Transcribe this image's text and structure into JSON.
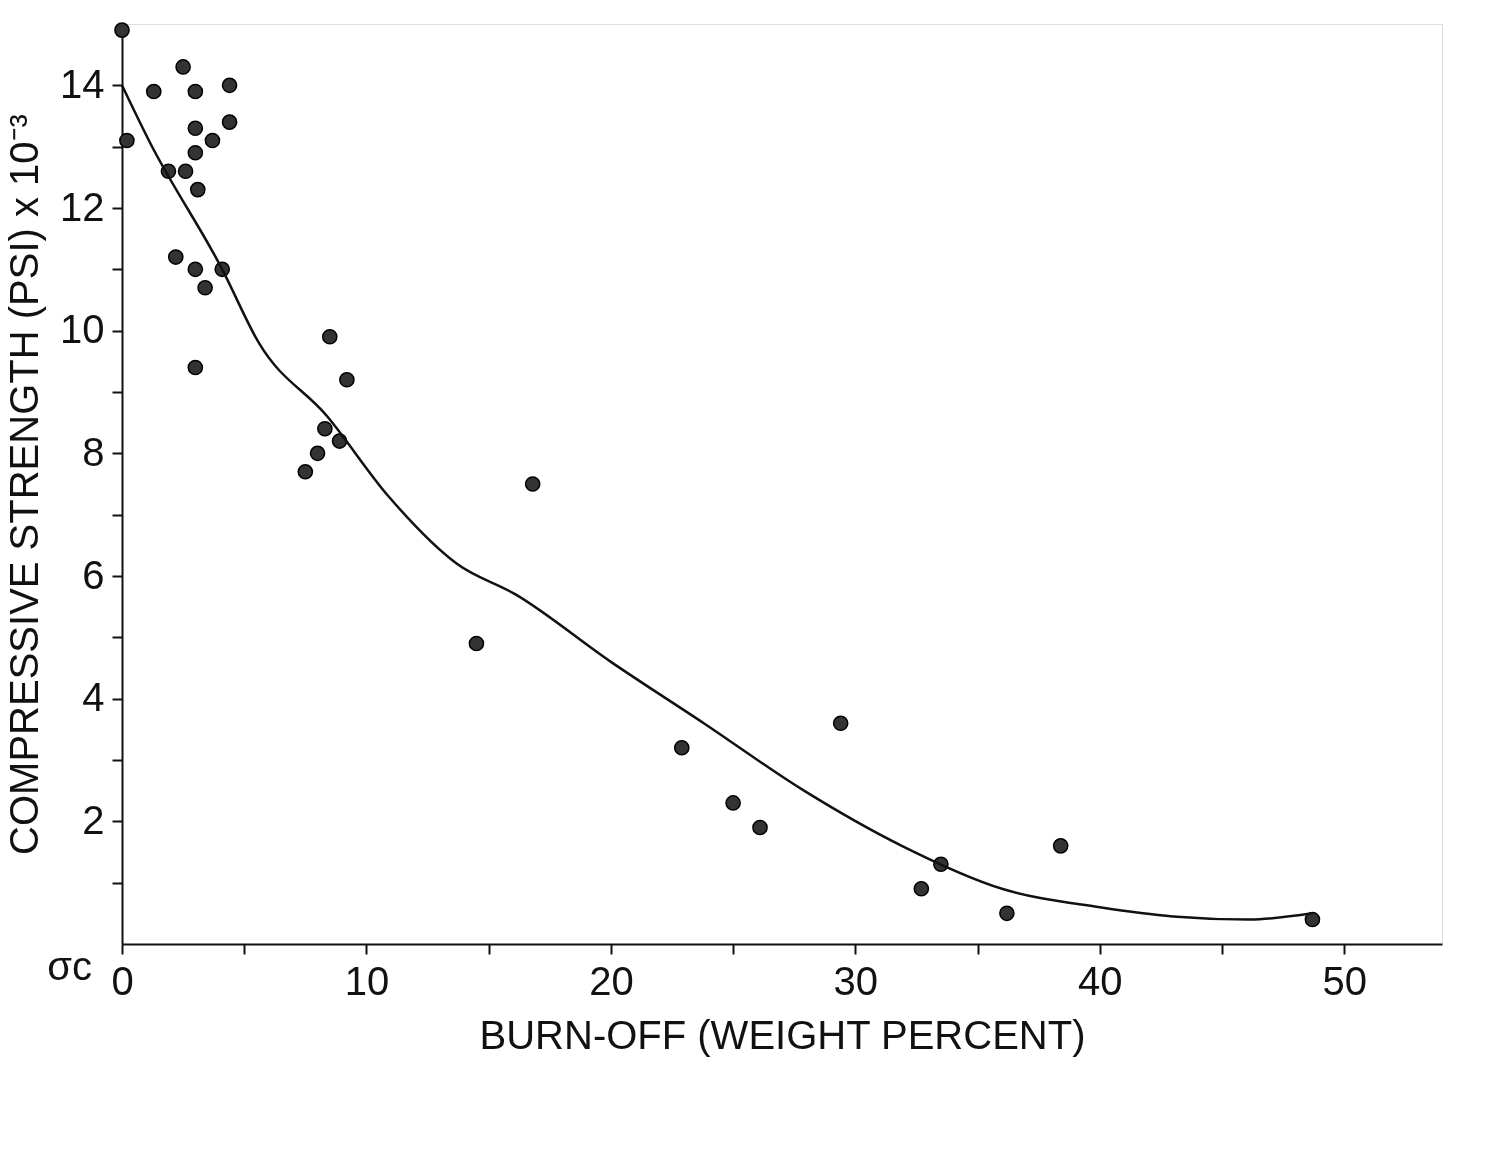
{
  "chart_data": {
    "type": "scatter",
    "xlabel": "BURN-OFF (WEIGHT PERCENT)",
    "ylabel": "COMPRESSIVE STRENGTH (PSI) x 10⁻³",
    "annotations": [
      "σc"
    ],
    "xlim": [
      0,
      54
    ],
    "ylim": [
      0,
      15
    ],
    "xticks": [
      0,
      {
        "value": 5,
        "label": null
      },
      10,
      {
        "value": 15,
        "label": null
      },
      20,
      {
        "value": 25,
        "label": null
      },
      30,
      {
        "value": 35,
        "label": null
      },
      40,
      {
        "value": 45,
        "label": null
      },
      50
    ],
    "yticks": [
      {
        "value": 1,
        "label": null
      },
      2,
      {
        "value": 3,
        "label": null
      },
      4,
      {
        "value": 5,
        "label": null
      },
      6,
      {
        "value": 7,
        "label": null
      },
      8,
      {
        "value": 9,
        "label": null
      },
      10,
      {
        "value": 11,
        "label": null
      },
      12,
      {
        "value": 13,
        "label": null
      },
      14
    ],
    "grid": false,
    "legend": false,
    "series": [
      {
        "type": "scatter",
        "marker": "circle",
        "color": "#333333",
        "x": [
          0.2,
          0,
          1.3,
          1.9,
          2.2,
          2.5,
          2.6,
          3.0,
          3.0,
          3.0,
          3.1,
          3.0,
          3.4,
          3.0,
          3.7,
          4.1,
          4.4,
          4.4,
          7.5,
          8.0,
          8.3,
          8.5,
          8.9,
          9.2,
          14.5,
          16.8,
          22.9,
          25.0,
          26.1,
          29.4,
          32.7,
          33.5,
          36.2,
          38.4,
          48.7
        ],
        "values": [
          13.1,
          14.9,
          13.9,
          12.6,
          11.2,
          14.3,
          12.6,
          13.9,
          13.3,
          12.9,
          12.3,
          11.0,
          10.7,
          9.4,
          13.1,
          11.0,
          14.0,
          13.4,
          7.7,
          8.0,
          8.4,
          9.9,
          8.2,
          9.2,
          4.9,
          7.5,
          3.2,
          2.3,
          1.9,
          3.6,
          0.9,
          1.3,
          0.5,
          1.6,
          0.4
        ]
      },
      {
        "type": "line",
        "marker": "none",
        "line_style": "solid",
        "color": "#111111",
        "x": [
          0,
          1.1,
          4.1,
          5.6,
          8.4,
          10.9,
          13.7,
          16.1,
          20.0,
          23.8,
          27.9,
          31.9,
          36.0,
          40.0,
          43.0,
          46.1,
          48.7
        ],
        "values": [
          14.0,
          13.1,
          11.0,
          9.8,
          8.6,
          7.3,
          6.2,
          5.7,
          4.6,
          3.6,
          2.5,
          1.6,
          0.9,
          0.6,
          0.45,
          0.4,
          0.5
        ]
      }
    ]
  }
}
